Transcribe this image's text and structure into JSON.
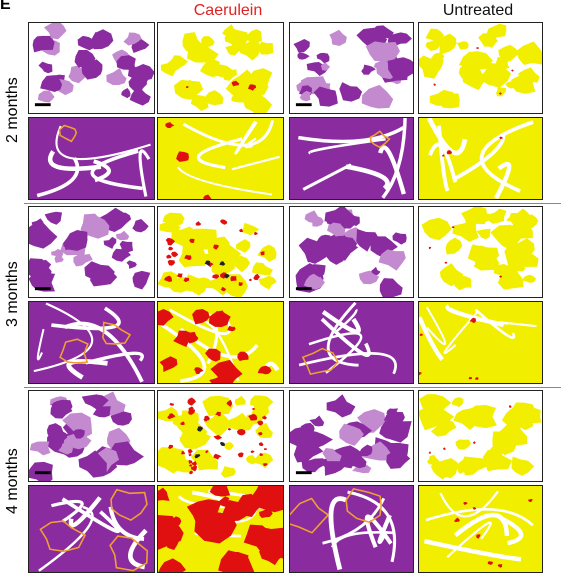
{
  "panel_letter": "E",
  "columns": [
    {
      "label": "Caerulein",
      "color": "#e32020"
    },
    {
      "label": "Untreated",
      "color": "#111111"
    }
  ],
  "rows": [
    {
      "label": "2 months"
    },
    {
      "label": "3 months"
    },
    {
      "label": "4 months"
    }
  ],
  "colors": {
    "he_stain": "#8a2ba0",
    "he_light": "#c48ad0",
    "mask_yellow": "#f2ee00",
    "mask_red": "#e01010",
    "outline": "#f0a030",
    "scale_bar": "#000000"
  }
}
